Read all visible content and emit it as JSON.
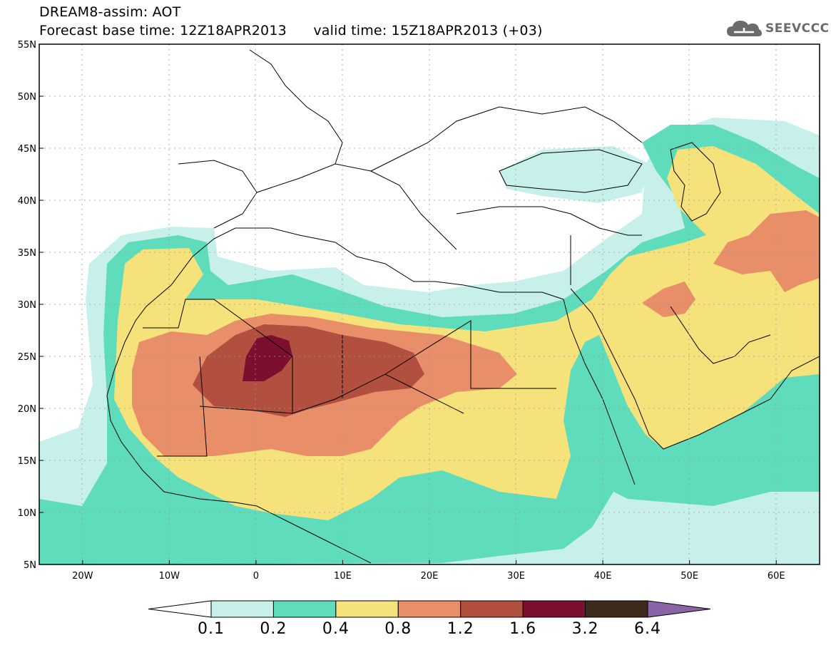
{
  "header": {
    "title": "DREAM8-assim: AOT",
    "subtitle": "Forecast base time: 12Z18APR2013      valid time: 15Z18APR2013 (+03)",
    "logo_text": "SEEVCCC"
  },
  "axes": {
    "lat_labels": [
      "55N",
      "50N",
      "45N",
      "40N",
      "35N",
      "30N",
      "25N",
      "20N",
      "15N",
      "10N",
      "5N"
    ],
    "lon_labels": [
      "20W",
      "10W",
      "0",
      "10E",
      "20E",
      "30E",
      "40E",
      "50E",
      "60E"
    ],
    "lat_range": [
      5,
      55
    ],
    "lon_range": [
      -25,
      65
    ]
  },
  "colorbar": {
    "levels": [
      "0.1",
      "0.2",
      "0.4",
      "0.8",
      "1.2",
      "1.6",
      "3.2",
      "6.4"
    ],
    "colors": [
      "#ffffff",
      "#c8f0ea",
      "#5fdcbc",
      "#f5e27a",
      "#e88f6a",
      "#b2503f",
      "#7c0e2e",
      "#3e2a1a",
      "#8b64a8"
    ]
  },
  "icons": [
    "cloud-icon"
  ]
}
